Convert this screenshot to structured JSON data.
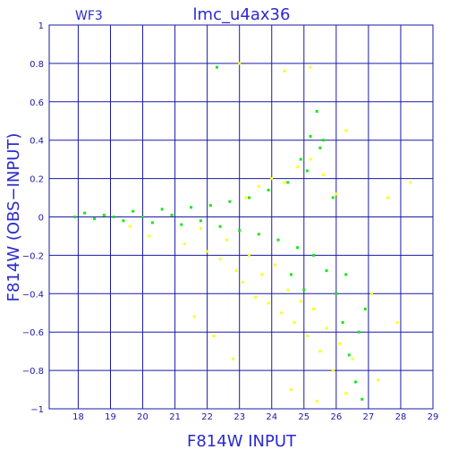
{
  "chart_data": {
    "type": "scatter",
    "panel_label": "WF3",
    "title": "lmc_u4ax36",
    "xlabel": "F814W INPUT",
    "ylabel": "F814W (OBS−INPUT)",
    "xlim": [
      17.1,
      29
    ],
    "ylim": [
      -1,
      1
    ],
    "x_ticks": [
      18,
      19,
      20,
      21,
      22,
      23,
      24,
      25,
      26,
      27,
      28,
      29
    ],
    "y_ticks": [
      1,
      0.8,
      0.6,
      0.4,
      0.2,
      0,
      -0.2,
      -0.4,
      -0.6,
      -0.8,
      -1
    ],
    "y_tick_labels": [
      "1",
      "0.8",
      "0.6",
      "0.4",
      "0.2",
      "0",
      "−0.2",
      "−0.4",
      "−0.6",
      "−0.8",
      "−1"
    ],
    "grid": true,
    "colors": {
      "axis": "#1a1aa6",
      "text": "#2a2ad0",
      "series_green": "#19e619",
      "series_yellow": "#ffff1a"
    },
    "series": [
      {
        "color": "yellow",
        "points": [
          [
            21.3,
            -0.14
          ],
          [
            21.8,
            -0.06
          ],
          [
            22.0,
            -0.18
          ],
          [
            22.4,
            -0.22
          ],
          [
            22.6,
            -0.12
          ],
          [
            22.9,
            -0.28
          ],
          [
            23.1,
            -0.34
          ],
          [
            23.3,
            -0.2
          ],
          [
            23.5,
            -0.42
          ],
          [
            23.7,
            -0.3
          ],
          [
            23.9,
            -0.45
          ],
          [
            24.1,
            -0.25
          ],
          [
            24.3,
            -0.5
          ],
          [
            24.5,
            -0.38
          ],
          [
            24.7,
            -0.55
          ],
          [
            24.9,
            -0.44
          ],
          [
            25.1,
            -0.62
          ],
          [
            25.3,
            -0.48
          ],
          [
            25.5,
            -0.7
          ],
          [
            25.7,
            -0.58
          ],
          [
            25.9,
            -0.8
          ],
          [
            26.1,
            -0.66
          ],
          [
            26.3,
            -0.92
          ],
          [
            26.5,
            -0.74
          ],
          [
            23.2,
            0.1
          ],
          [
            23.6,
            0.16
          ],
          [
            24.0,
            0.2
          ],
          [
            24.4,
            0.18
          ],
          [
            24.8,
            0.26
          ],
          [
            25.2,
            0.3
          ],
          [
            25.6,
            0.22
          ],
          [
            26.0,
            0.12
          ],
          [
            23.0,
            0.8
          ],
          [
            24.4,
            0.76
          ],
          [
            25.2,
            0.78
          ],
          [
            26.3,
            0.45
          ],
          [
            27.1,
            -0.4
          ],
          [
            27.3,
            -0.85
          ],
          [
            27.6,
            0.1
          ],
          [
            27.9,
            -0.55
          ],
          [
            28.3,
            0.18
          ],
          [
            22.2,
            -0.62
          ],
          [
            22.8,
            -0.74
          ],
          [
            21.6,
            -0.52
          ],
          [
            24.6,
            -0.9
          ],
          [
            25.4,
            -0.96
          ],
          [
            20.2,
            -0.1
          ],
          [
            19.6,
            -0.05
          ]
        ]
      },
      {
        "color": "green",
        "points": [
          [
            17.9,
            0.0
          ],
          [
            18.2,
            0.02
          ],
          [
            18.5,
            -0.01
          ],
          [
            18.8,
            0.01
          ],
          [
            19.1,
            0.0
          ],
          [
            19.4,
            -0.02
          ],
          [
            19.7,
            0.03
          ],
          [
            20.0,
            0.0
          ],
          [
            20.3,
            -0.03
          ],
          [
            20.6,
            0.04
          ],
          [
            20.9,
            0.01
          ],
          [
            21.2,
            -0.04
          ],
          [
            21.5,
            0.05
          ],
          [
            21.8,
            -0.02
          ],
          [
            22.1,
            0.06
          ],
          [
            22.4,
            -0.05
          ],
          [
            22.7,
            0.08
          ],
          [
            23.0,
            -0.07
          ],
          [
            23.3,
            0.1
          ],
          [
            23.6,
            -0.09
          ],
          [
            23.9,
            0.14
          ],
          [
            24.2,
            -0.12
          ],
          [
            24.5,
            0.18
          ],
          [
            24.8,
            -0.16
          ],
          [
            25.1,
            0.24
          ],
          [
            25.3,
            -0.2
          ],
          [
            25.5,
            0.36
          ],
          [
            25.7,
            -0.28
          ],
          [
            25.9,
            0.1
          ],
          [
            26.0,
            -0.4
          ],
          [
            26.2,
            -0.55
          ],
          [
            26.4,
            -0.72
          ],
          [
            26.6,
            -0.86
          ],
          [
            26.8,
            -0.95
          ],
          [
            25.2,
            0.42
          ],
          [
            25.4,
            0.55
          ],
          [
            25.6,
            0.4
          ],
          [
            24.9,
            0.3
          ],
          [
            25.0,
            -0.38
          ],
          [
            24.6,
            -0.3
          ],
          [
            26.3,
            -0.3
          ],
          [
            26.7,
            -0.6
          ],
          [
            22.3,
            0.78
          ],
          [
            26.9,
            -0.48
          ]
        ]
      }
    ]
  }
}
